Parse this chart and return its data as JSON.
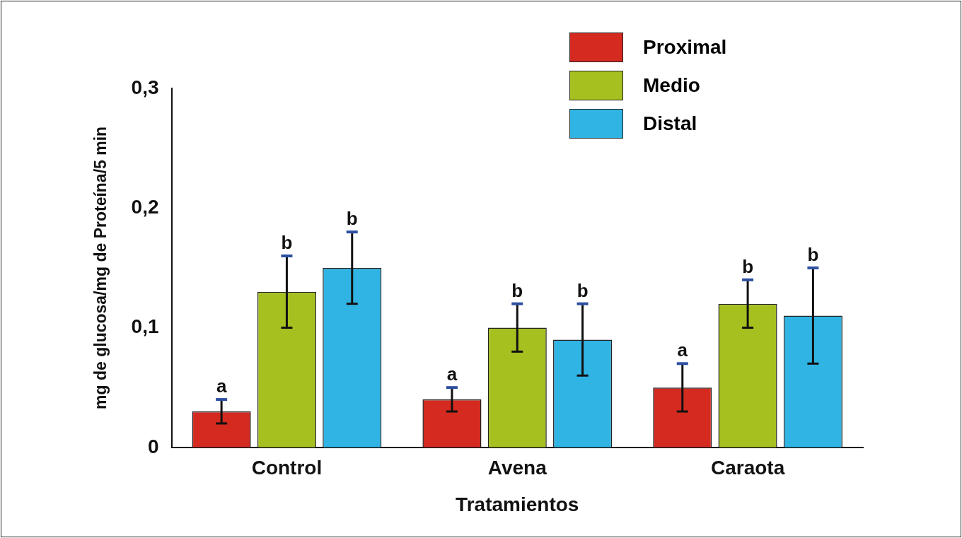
{
  "chart_data": {
    "type": "bar",
    "xlabel": "Tratamientos",
    "ylabel": "mg de glucosa/mg de Proteína/5 min",
    "categories": [
      "Control",
      "Avena",
      "Caraota"
    ],
    "series": [
      {
        "name": "Proximal",
        "color": "#d42a20",
        "values": [
          0.03,
          0.04,
          0.05
        ],
        "errors": [
          0.01,
          0.01,
          0.02
        ],
        "value_labels": [
          "a",
          "a",
          "a"
        ]
      },
      {
        "name": "Medio",
        "color": "#a6c020",
        "values": [
          0.13,
          0.1,
          0.12
        ],
        "errors": [
          0.03,
          0.02,
          0.02
        ],
        "value_labels": [
          "b",
          "b",
          "b"
        ]
      },
      {
        "name": "Distal",
        "color": "#30b4e4",
        "values": [
          0.15,
          0.09,
          0.11
        ],
        "errors": [
          0.03,
          0.03,
          0.04
        ],
        "value_labels": [
          "b",
          "b",
          "b"
        ]
      }
    ],
    "ylim": [
      0,
      0.3
    ],
    "yticks": [
      0,
      {
        "value": 0.1,
        "label": "0,1"
      },
      {
        "value": 0.2,
        "label": "0,2"
      },
      {
        "value": 0.3,
        "label": "0,3"
      }
    ],
    "grid": false,
    "legend": "top right"
  }
}
